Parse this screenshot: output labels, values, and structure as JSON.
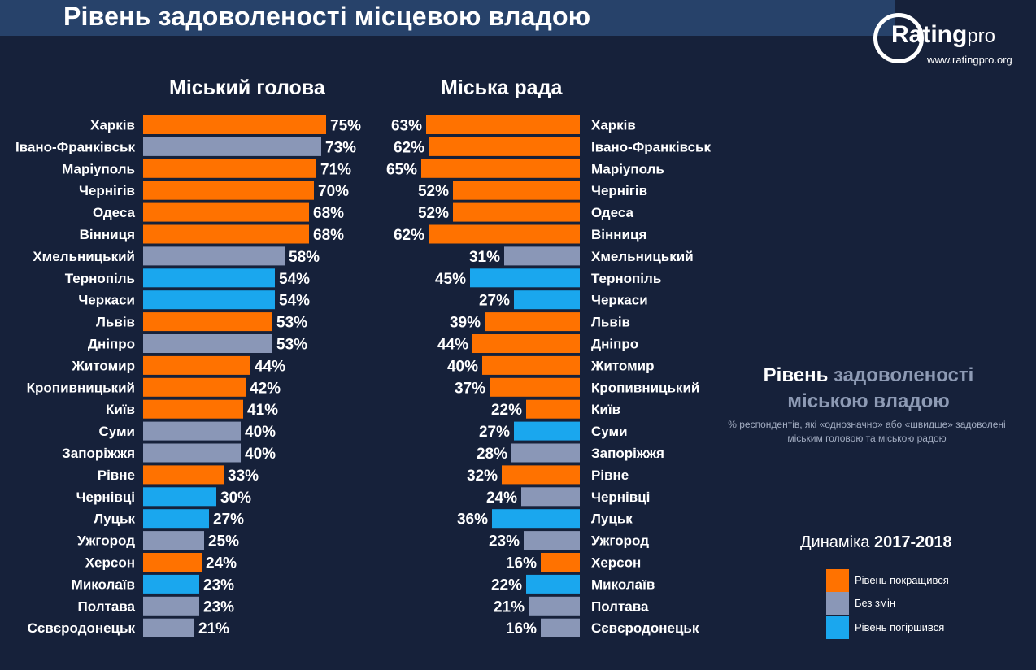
{
  "page": {
    "title": "Рівень задоволеності місцевою владою"
  },
  "logo": {
    "name": "Rating",
    "suffix": "pro",
    "url": "www.ratingpro.org"
  },
  "colors": {
    "improved": "#ff7200",
    "no_change": "#8a97b7",
    "worsened": "#1aa7ee",
    "background": "#16213a",
    "title_band": "#27426a"
  },
  "info": {
    "title_part1": "Рівень",
    "title_part2": "задоволеності",
    "title_part3": "міською владою",
    "subtitle_line1": "% респондентів, які «однозначно» або «швидше» задоволені",
    "subtitle_line2": "міським головою та міською радою"
  },
  "legend": {
    "title_prefix": "Динаміка",
    "title_years": "2017-2018",
    "items": [
      {
        "key": "improved",
        "label": "Рівень покращився"
      },
      {
        "key": "no_change",
        "label": "Без змін"
      },
      {
        "key": "worsened",
        "label": "Рівень погіршився"
      }
    ]
  },
  "chart_data": [
    {
      "type": "bar",
      "orientation": "horizontal",
      "title": "Міський голова",
      "categories": [
        "Харків",
        "Івано-Франківськ",
        "Маріуполь",
        "Чернігів",
        "Одеса",
        "Вінниця",
        "Хмельницький",
        "Тернопіль",
        "Черкаси",
        "Львів",
        "Дніпро",
        "Житомир",
        "Кропивницький",
        "Київ",
        "Суми",
        "Запоріжжя",
        "Рівне",
        "Чернівці",
        "Луцьк",
        "Ужгород",
        "Херсон",
        "Миколаїв",
        "Полтава",
        "Сєвєродонецьк"
      ],
      "values": [
        75,
        73,
        71,
        70,
        68,
        68,
        58,
        54,
        54,
        53,
        53,
        44,
        42,
        41,
        40,
        40,
        33,
        30,
        27,
        25,
        24,
        23,
        23,
        21
      ],
      "labels": [
        "75%",
        "73%",
        "71%",
        "70%",
        "68%",
        "68%",
        "58%",
        "54%",
        "54%",
        "53%",
        "53%",
        "44%",
        "42%",
        "41%",
        "40%",
        "40%",
        "33%",
        "30%",
        "27%",
        "25%",
        "24%",
        "23%",
        "23%",
        "21%"
      ],
      "dynamics": [
        "improved",
        "no_change",
        "improved",
        "improved",
        "improved",
        "improved",
        "no_change",
        "worsened",
        "worsened",
        "improved",
        "no_change",
        "improved",
        "improved",
        "improved",
        "no_change",
        "no_change",
        "improved",
        "worsened",
        "worsened",
        "no_change",
        "improved",
        "worsened",
        "no_change",
        "no_change"
      ]
    },
    {
      "type": "bar",
      "orientation": "horizontal",
      "title": "Міська рада",
      "categories": [
        "Харків",
        "Івано-Франківськ",
        "Маріуполь",
        "Чернігів",
        "Одеса",
        "Вінниця",
        "Хмельницький",
        "Тернопіль",
        "Черкаси",
        "Львів",
        "Дніпро",
        "Житомир",
        "Кропивницький",
        "Київ",
        "Суми",
        "Запоріжжя",
        "Рівне",
        "Чернівці",
        "Луцьк",
        "Ужгород",
        "Херсон",
        "Миколаїв",
        "Полтава",
        "Сєвєродонецьк"
      ],
      "values": [
        63,
        62,
        65,
        52,
        52,
        62,
        31,
        45,
        27,
        39,
        44,
        40,
        37,
        22,
        27,
        28,
        32,
        24,
        36,
        23,
        16,
        22,
        21,
        16
      ],
      "labels": [
        "63%",
        "62%",
        "65%",
        "52%",
        "52%",
        "62%",
        "31%",
        "45%",
        "27%",
        "39%",
        "44%",
        "40%",
        "37%",
        "22%",
        "27%",
        "28%",
        "32%",
        "24%",
        "36%",
        "23%",
        "16%",
        "22%",
        "21%",
        "16%"
      ],
      "dynamics": [
        "improved",
        "improved",
        "improved",
        "improved",
        "improved",
        "improved",
        "no_change",
        "worsened",
        "worsened",
        "improved",
        "improved",
        "improved",
        "improved",
        "improved",
        "worsened",
        "no_change",
        "improved",
        "no_change",
        "worsened",
        "no_change",
        "improved",
        "worsened",
        "no_change",
        "no_change"
      ]
    }
  ]
}
